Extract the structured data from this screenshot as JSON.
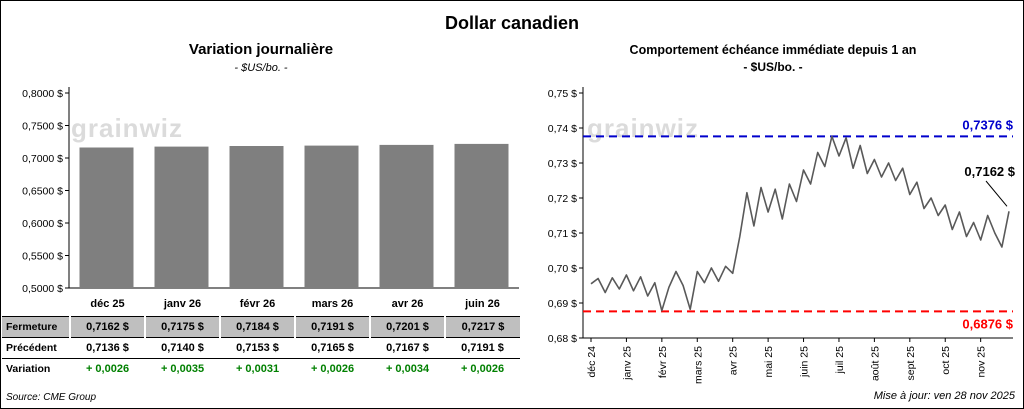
{
  "title": "Dollar canadien",
  "watermark": "grainwiz",
  "source": "Source: CME Group",
  "updated": "Mise à jour: ven 28 nov 2025",
  "left_chart": {
    "title": "Variation journalière",
    "subtitle": "- $US/bo. -"
  },
  "right_chart": {
    "title": "Comportement échéance immédiate depuis 1 an",
    "subtitle": "- $US/bo. -"
  },
  "table": {
    "header": [
      "déc 25",
      "janv 26",
      "févr 26",
      "mars 26",
      "avr 26",
      "juin 26"
    ],
    "rows": [
      {
        "label": "Fermeture",
        "style": "fermeture",
        "values": [
          "0,7162 $",
          "0,7175 $",
          "0,7184 $",
          "0,7191 $",
          "0,7201 $",
          "0,7217 $"
        ]
      },
      {
        "label": "Précédent",
        "style": "precedent",
        "values": [
          "0,7136 $",
          "0,7140 $",
          "0,7153 $",
          "0,7165 $",
          "0,7167 $",
          "0,7191 $"
        ]
      },
      {
        "label": "Variation",
        "style": "variation",
        "values": [
          "+ 0,0026",
          "+ 0,0035",
          "+ 0,0031",
          "+ 0,0026",
          "+ 0,0034",
          "+ 0,0026"
        ]
      }
    ]
  },
  "chart_data": [
    {
      "type": "bar",
      "title": "Variation journalière",
      "subtitle": "- $US/bo. -",
      "categories": [
        "déc 25",
        "janv 26",
        "févr 26",
        "mars 26",
        "avr 26",
        "juin 26"
      ],
      "values": [
        0.7162,
        0.7175,
        0.7184,
        0.7191,
        0.7201,
        0.7217
      ],
      "ylim": [
        0.5,
        0.8
      ],
      "y_tick_step": 0.05,
      "y_tick_labels": [
        "0,5000 $",
        "0,5500 $",
        "0,6000 $",
        "0,6500 $",
        "0,7000 $",
        "0,7500 $",
        "0,8000 $"
      ],
      "grid": false,
      "bar_color": "#7F7F7F"
    },
    {
      "type": "line",
      "title": "Comportement échéance immédiate depuis 1 an",
      "subtitle": "- $US/bo. -",
      "x_tick_labels": [
        "déc 24",
        "janv 25",
        "févr 25",
        "mars 25",
        "avr 25",
        "mai 25",
        "juin 25",
        "juil 25",
        "août 25",
        "sept 25",
        "oct 25",
        "nov 25"
      ],
      "points_per_month": 5,
      "values": [
        0.6955,
        0.697,
        0.693,
        0.6972,
        0.694,
        0.698,
        0.6935,
        0.6975,
        0.692,
        0.6958,
        0.6878,
        0.6945,
        0.699,
        0.695,
        0.6882,
        0.699,
        0.6958,
        0.7,
        0.6962,
        0.7005,
        0.6985,
        0.709,
        0.7215,
        0.712,
        0.723,
        0.716,
        0.7225,
        0.714,
        0.724,
        0.719,
        0.728,
        0.724,
        0.733,
        0.729,
        0.7376,
        0.732,
        0.7372,
        0.7285,
        0.735,
        0.727,
        0.731,
        0.726,
        0.73,
        0.725,
        0.7285,
        0.721,
        0.7245,
        0.717,
        0.72,
        0.715,
        0.718,
        0.711,
        0.716,
        0.709,
        0.713,
        0.708,
        0.715,
        0.71,
        0.706,
        0.7162
      ],
      "ylim": [
        0.68,
        0.75
      ],
      "y_tick_step": 0.01,
      "y_tick_labels": [
        "0,68 $",
        "0,69 $",
        "0,70 $",
        "0,71 $",
        "0,72 $",
        "0,73 $",
        "0,74 $",
        "0,75 $"
      ],
      "grid": false,
      "line_color": "#595959",
      "annotations": {
        "high": {
          "value": 0.7376,
          "label": "0,7376 $",
          "color": "#0000CC",
          "style": "dashed"
        },
        "low": {
          "value": 0.6876,
          "label": "0,6876 $",
          "color": "#FF0000",
          "style": "dashed"
        },
        "last": {
          "value": 0.7162,
          "label": "0,7162 $",
          "color": "#000000"
        }
      }
    }
  ]
}
